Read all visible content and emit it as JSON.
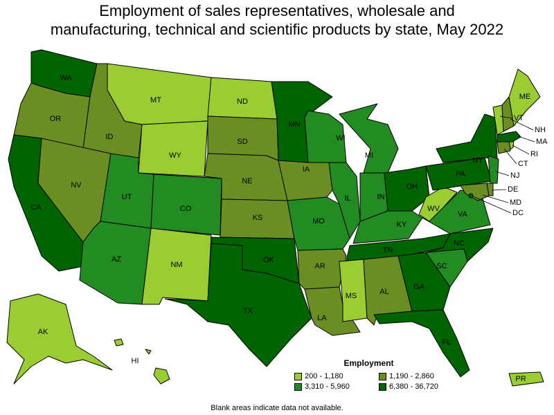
{
  "title_lines": [
    "Employment of sales representatives, wholesale and",
    "manufacturing, technical and scientific products by state, May 2022"
  ],
  "legend": {
    "title": "Employment",
    "items": [
      {
        "range": "200 - 1,180",
        "color": "#9acd32"
      },
      {
        "range": "1,190 - 2,860",
        "color": "#6b8e23"
      },
      {
        "range": "3,310 - 5,960",
        "color": "#228b22"
      },
      {
        "range": "6,380 - 36,720",
        "color": "#006400"
      }
    ]
  },
  "footnote": "Blank areas indicate data not available.",
  "states": [
    {
      "abbr": "WA",
      "class": 3
    },
    {
      "abbr": "OR",
      "class": 1
    },
    {
      "abbr": "CA",
      "class": 3
    },
    {
      "abbr": "ID",
      "class": 1
    },
    {
      "abbr": "NV",
      "class": 1
    },
    {
      "abbr": "MT",
      "class": 0
    },
    {
      "abbr": "WY",
      "class": 0
    },
    {
      "abbr": "UT",
      "class": 2
    },
    {
      "abbr": "AZ",
      "class": 2
    },
    {
      "abbr": "CO",
      "class": 2
    },
    {
      "abbr": "NM",
      "class": 0
    },
    {
      "abbr": "ND",
      "class": 0
    },
    {
      "abbr": "SD",
      "class": 1
    },
    {
      "abbr": "NE",
      "class": 1
    },
    {
      "abbr": "KS",
      "class": 1
    },
    {
      "abbr": "OK",
      "class": 3
    },
    {
      "abbr": "TX",
      "class": 3
    },
    {
      "abbr": "MN",
      "class": 3
    },
    {
      "abbr": "IA",
      "class": 1
    },
    {
      "abbr": "MO",
      "class": 2
    },
    {
      "abbr": "AR",
      "class": 1
    },
    {
      "abbr": "LA",
      "class": 1
    },
    {
      "abbr": "WI",
      "class": 2
    },
    {
      "abbr": "IL",
      "class": 2
    },
    {
      "abbr": "MI",
      "class": 2
    },
    {
      "abbr": "IN",
      "class": 2
    },
    {
      "abbr": "OH",
      "class": 3
    },
    {
      "abbr": "KY",
      "class": 2
    },
    {
      "abbr": "TN",
      "class": 3
    },
    {
      "abbr": "MS",
      "class": 0
    },
    {
      "abbr": "AL",
      "class": 1
    },
    {
      "abbr": "GA",
      "class": 3
    },
    {
      "abbr": "FL",
      "class": 3
    },
    {
      "abbr": "SC",
      "class": 2
    },
    {
      "abbr": "NC",
      "class": 3
    },
    {
      "abbr": "VA",
      "class": 2
    },
    {
      "abbr": "WV",
      "class": 0
    },
    {
      "abbr": "PA",
      "class": 3
    },
    {
      "abbr": "NY",
      "class": 3
    },
    {
      "abbr": "NJ",
      "class": 2
    },
    {
      "abbr": "DE",
      "class": 1
    },
    {
      "abbr": "MD",
      "class": 1
    },
    {
      "abbr": "DC",
      "class": 3
    },
    {
      "abbr": "CT",
      "class": 1
    },
    {
      "abbr": "RI",
      "class": 0
    },
    {
      "abbr": "MA",
      "class": 3
    },
    {
      "abbr": "VT",
      "class": 0
    },
    {
      "abbr": "NH",
      "class": 1
    },
    {
      "abbr": "ME",
      "class": 0
    },
    {
      "abbr": "AK",
      "class": 0
    },
    {
      "abbr": "HI",
      "class": 0
    },
    {
      "abbr": "PR",
      "class": 0
    }
  ]
}
